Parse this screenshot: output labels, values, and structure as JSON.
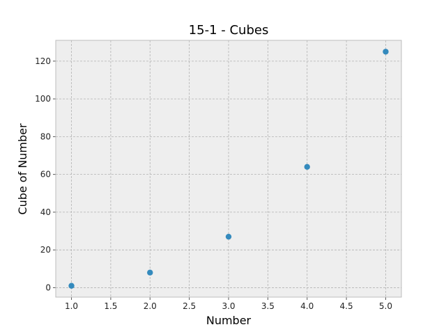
{
  "chart_data": {
    "type": "scatter",
    "title": "15-1 - Cubes",
    "xlabel": "Number",
    "ylabel": "Cube of Number",
    "x": [
      1,
      2,
      3,
      4,
      5
    ],
    "y": [
      1,
      8,
      27,
      64,
      125
    ],
    "xlim": [
      0.8,
      5.2
    ],
    "ylim": [
      -5,
      131
    ],
    "xticks": [
      1.0,
      1.5,
      2.0,
      2.5,
      3.0,
      3.5,
      4.0,
      4.5,
      5.0
    ],
    "xtick_labels": [
      "1.0",
      "1.5",
      "2.0",
      "2.5",
      "3.0",
      "3.5",
      "4.0",
      "4.5",
      "5.0"
    ],
    "yticks": [
      0,
      20,
      40,
      60,
      80,
      100,
      120
    ],
    "ytick_labels": [
      "0",
      "20",
      "40",
      "60",
      "80",
      "100",
      "120"
    ],
    "grid": true,
    "marker_color": "#348abd",
    "plot_background": "#eeeeee",
    "grid_color": "#b2b2b2"
  }
}
